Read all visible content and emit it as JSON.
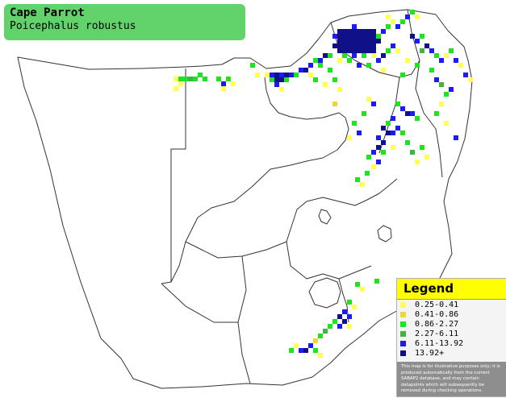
{
  "title": {
    "common_name": "Cape Parrot",
    "scientific_name": "Poicephalus robustus"
  },
  "legend": {
    "heading": "Legend",
    "entries": [
      {
        "label": "0.25-0.41",
        "color": "#ffff55"
      },
      {
        "label": "0.41-0.86",
        "color": "#e8d740"
      },
      {
        "label": "0.86-2.27",
        "color": "#1fe31f"
      },
      {
        "label": "2.27-6.11",
        "color": "#3fb53f"
      },
      {
        "label": "6.11-13.92",
        "color": "#1c1cf0"
      },
      {
        "label": "13.92+",
        "color": "#101088"
      }
    ],
    "disclaimer": "This map is for illustrative purposes only; it is produced automatically from the current SABAP2 database, and may contain datapoints which will subsequently be removed during checking operations."
  },
  "colors": {
    "title_bg": "#62d36a",
    "legend_header": "#ffff00",
    "disclaimer_bg": "#8e8e8e",
    "border": "#333333"
  }
}
